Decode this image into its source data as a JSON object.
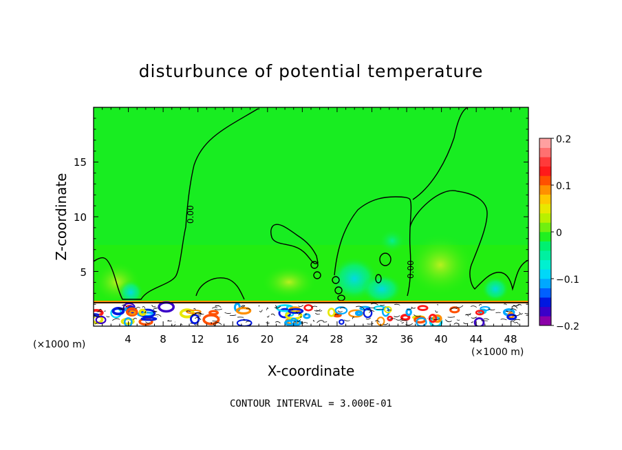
{
  "chart_data": {
    "type": "heatmap",
    "title": "disturbunce of potential temperature",
    "xlabel": "X-coordinate",
    "ylabel": "Z-coordinate",
    "x_unit_left": "(×1000 m)",
    "x_unit_right": "(×1000 m)",
    "xlim": [
      0,
      50
    ],
    "ylim": [
      0,
      20
    ],
    "x_ticks": [
      "4",
      "8",
      "12",
      "16",
      "20",
      "24",
      "28",
      "32",
      "36",
      "40",
      "44",
      "48"
    ],
    "y_ticks": [
      "5",
      "10",
      "15"
    ],
    "colorbar": {
      "range": [
        -0.2,
        0.2
      ],
      "tick_labels": [
        "0.2",
        "0.1",
        "0",
        "−0.1",
        "−0.2"
      ],
      "colors": [
        "#8b00a8",
        "#3a00c8",
        "#0018e0",
        "#0060ff",
        "#00a8ff",
        "#00d8f8",
        "#00f0d0",
        "#00f0a0",
        "#00f070",
        "#20f020",
        "#70f010",
        "#b8f000",
        "#e8e800",
        "#ffc800",
        "#ff9000",
        "#ff5000",
        "#ff1a1a",
        "#ff3a3a",
        "#ff7070",
        "#ffa0a0"
      ]
    },
    "contour_label": "0.00",
    "contour_interval_text": "CONTOUR INTERVAL = 3.000E-01",
    "background_color": "#22ee11",
    "grid": false
  }
}
